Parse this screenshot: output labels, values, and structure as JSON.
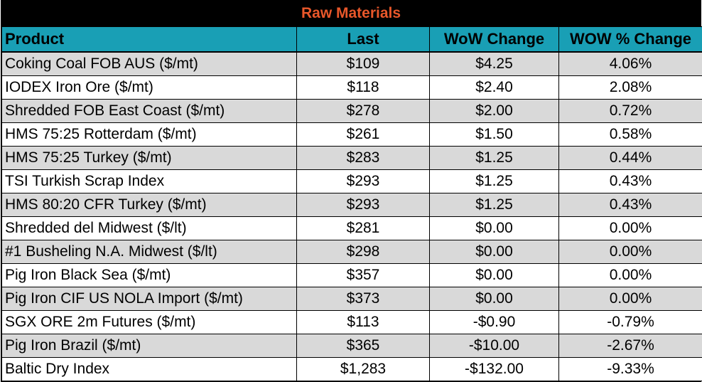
{
  "title": "Raw Materials",
  "headers": {
    "product": "Product",
    "last": "Last",
    "wow_change": "WoW Change",
    "wow_pct_change": "WOW % Change"
  },
  "colors": {
    "title_bg": "#000000",
    "title_text": "#e8572a",
    "header_bg": "#199fb5",
    "row_shade": "#d9d9d9"
  },
  "rows": [
    {
      "product": "Coking Coal FOB AUS ($/mt)",
      "last": "$109",
      "wow": "$4.25",
      "pct": "4.06%"
    },
    {
      "product": "IODEX  Iron Ore ($/mt)",
      "last": "$118",
      "wow": "$2.40",
      "pct": "2.08%"
    },
    {
      "product": "Shredded FOB East Coast ($/mt)",
      "last": "$278",
      "wow": "$2.00",
      "pct": "0.72%"
    },
    {
      "product": "HMS 75:25 Rotterdam ($/mt)",
      "last": "$261",
      "wow": "$1.50",
      "pct": "0.58%"
    },
    {
      "product": "HMS 75:25 Turkey ($/mt)",
      "last": "$283",
      "wow": "$1.25",
      "pct": "0.44%"
    },
    {
      "product": "TSI Turkish Scrap Index",
      "last": "$293",
      "wow": "$1.25",
      "pct": "0.43%"
    },
    {
      "product": "HMS 80:20 CFR Turkey ($/mt)",
      "last": "$293",
      "wow": "$1.25",
      "pct": "0.43%"
    },
    {
      "product": "Shredded del  Midwest ($/lt)",
      "last": "$281",
      "wow": "$0.00",
      "pct": "0.00%"
    },
    {
      "product": "#1 Busheling N.A. Midwest ($/lt)",
      "last": "$298",
      "wow": "$0.00",
      "pct": "0.00%"
    },
    {
      "product": "Pig Iron Black Sea ($/mt)",
      "last": "$357",
      "wow": "$0.00",
      "pct": "0.00%"
    },
    {
      "product": "Pig Iron CIF US NOLA Import ($/mt)",
      "last": "$373",
      "wow": "$0.00",
      "pct": "0.00%"
    },
    {
      "product": "SGX ORE 2m Futures ($/mt)",
      "last": "$113",
      "wow": "-$0.90",
      "pct": "-0.79%"
    },
    {
      "product": "Pig Iron Brazil ($/mt)",
      "last": "$365",
      "wow": "-$10.00",
      "pct": "-2.67%"
    },
    {
      "product": "Baltic Dry Index",
      "last": "$1,283",
      "wow": "-$132.00",
      "pct": "-9.33%"
    }
  ]
}
